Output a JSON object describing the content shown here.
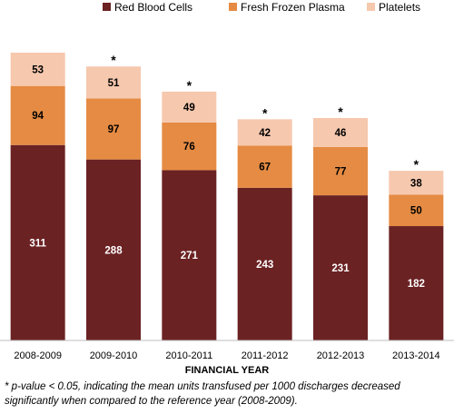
{
  "chart_data": {
    "type": "bar",
    "stacked": true,
    "categories": [
      "2008-2009",
      "2009-2010",
      "2010-2011",
      "2011-2012",
      "2012-2013",
      "2013-2014"
    ],
    "series": [
      {
        "name": "Red Blood Cells",
        "values": [
          311,
          288,
          271,
          243,
          231,
          182
        ],
        "color": "#6b2223",
        "label_color": "#ffffff"
      },
      {
        "name": "Fresh Frozen Plasma",
        "values": [
          94,
          97,
          76,
          67,
          77,
          50
        ],
        "color": "#e58b43",
        "label_color": "#000000"
      },
      {
        "name": "Platelets",
        "values": [
          53,
          51,
          49,
          42,
          46,
          38
        ],
        "color": "#f6c8ae",
        "label_color": "#000000"
      }
    ],
    "significance_marker": "*",
    "significant": [
      false,
      true,
      true,
      true,
      true,
      true
    ],
    "xlabel": "FINANCIAL YEAR",
    "ylabel": "",
    "title": "",
    "ylim": [
      0,
      458
    ],
    "legend_position": "top",
    "grid": false,
    "footnote": "* p-value < 0.05, indicating the mean units transfused per 1000 discharges decreased significantly when compared to the reference year (2008-2009)."
  }
}
